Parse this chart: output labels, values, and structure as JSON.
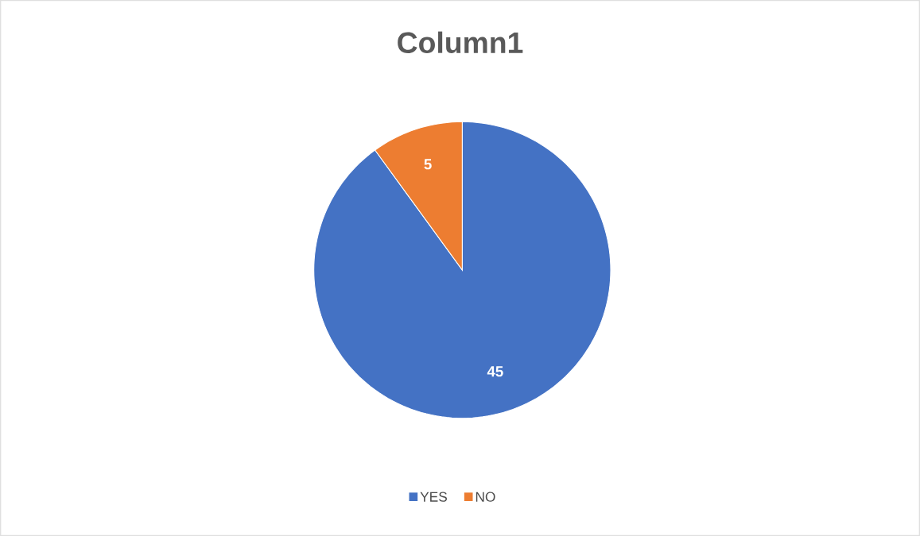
{
  "chart_data": {
    "type": "pie",
    "title": "Column1",
    "categories": [
      "YES",
      "NO"
    ],
    "values": [
      45,
      5
    ],
    "colors": [
      "#4472c4",
      "#ed7d31"
    ],
    "data_labels": true,
    "legend": "bottom"
  }
}
